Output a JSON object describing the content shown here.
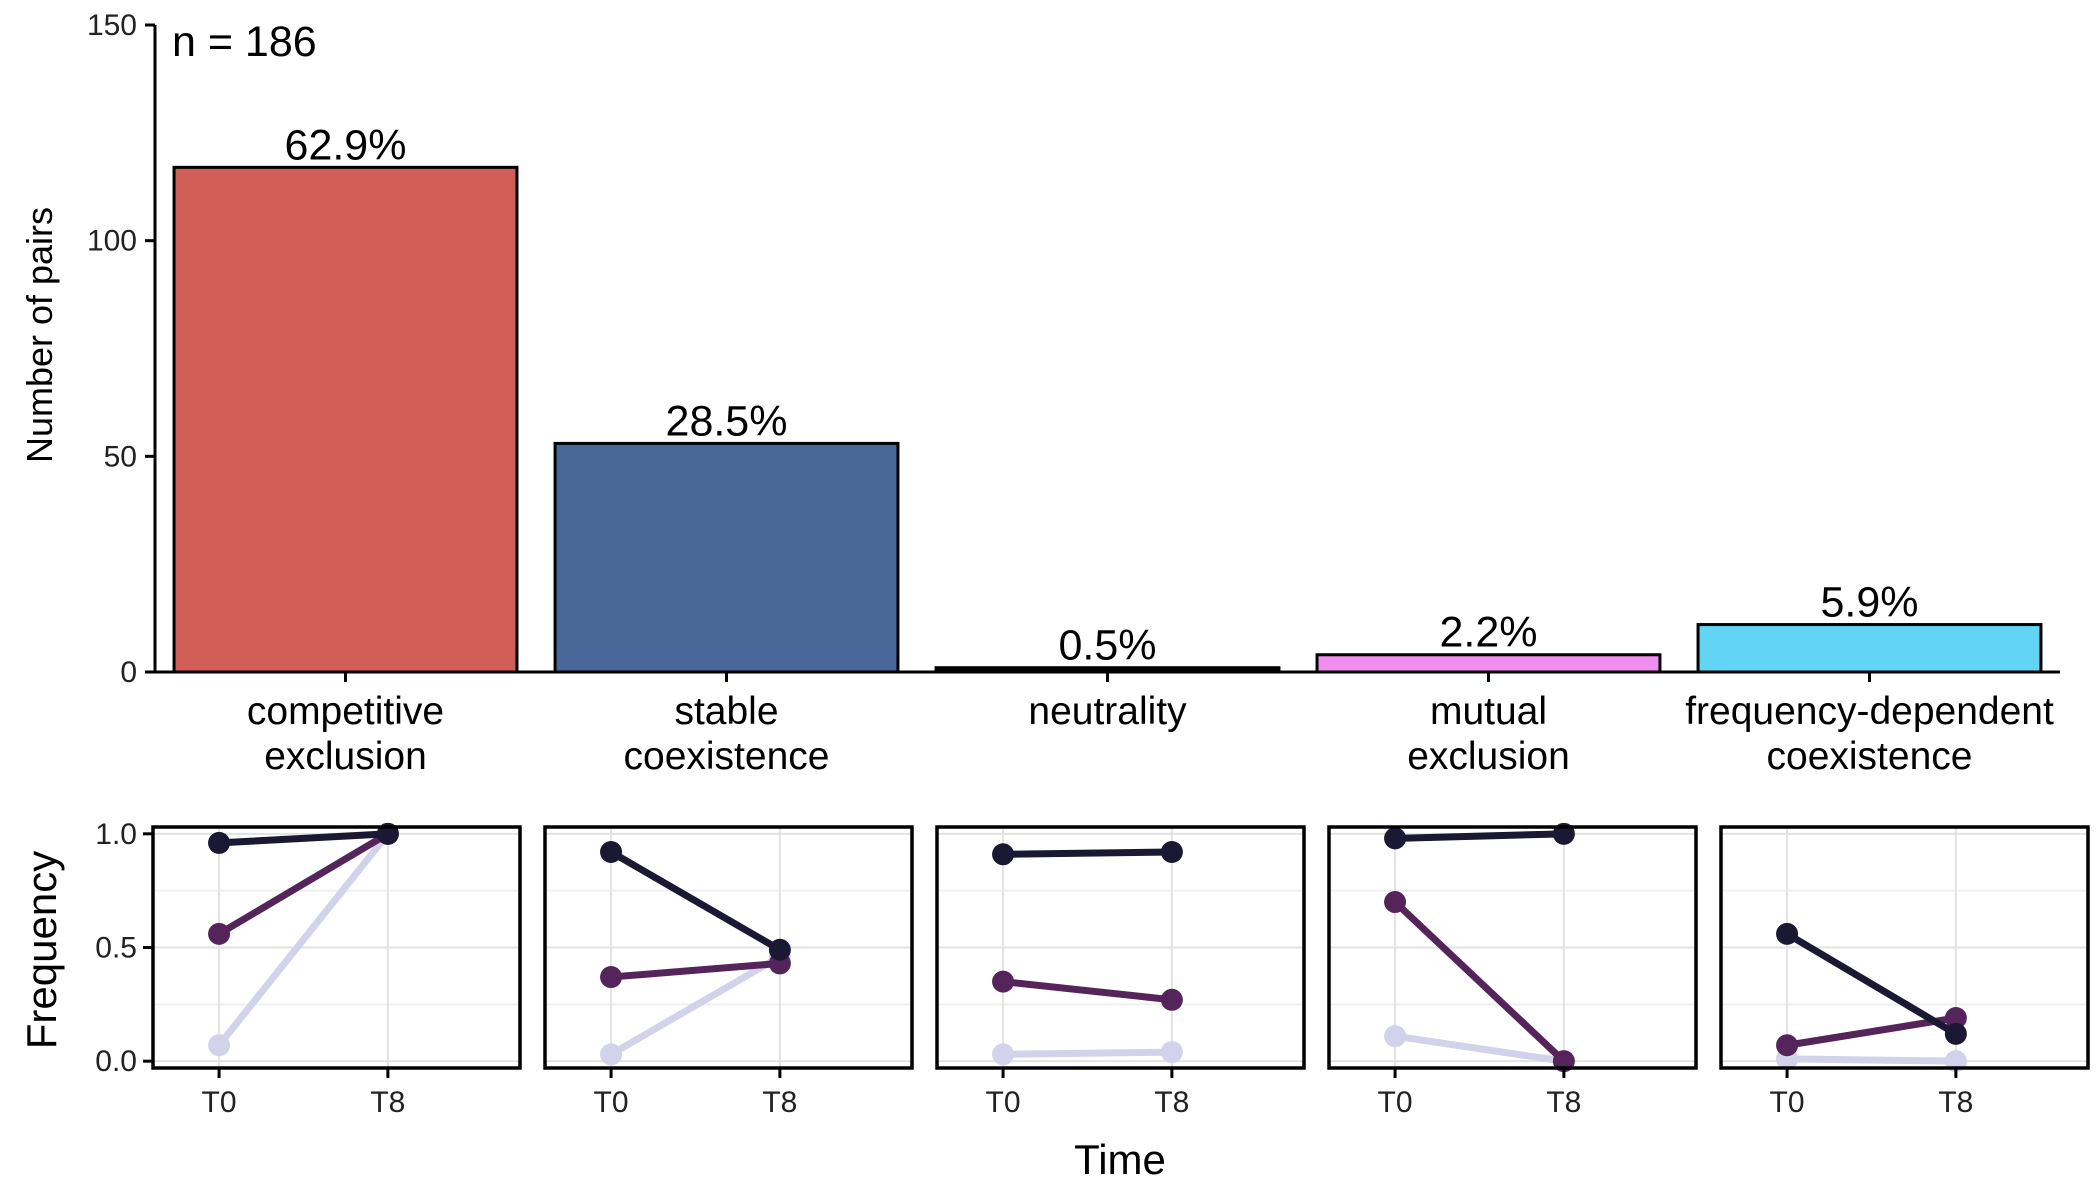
{
  "chart_data": [
    {
      "type": "bar",
      "annotation": "n = 186",
      "ylabel": "Number of pairs",
      "ylim": [
        0,
        150
      ],
      "yticks": [
        0,
        50,
        100,
        150
      ],
      "categories": [
        {
          "line1": "competitive",
          "line2": "exclusion"
        },
        {
          "line1": "stable",
          "line2": "coexistence"
        },
        {
          "line1": "neutrality",
          "line2": ""
        },
        {
          "line1": "mutual",
          "line2": "exclusion"
        },
        {
          "line1": "frequency-dependent",
          "line2": "coexistence"
        }
      ],
      "values": [
        117,
        53,
        1,
        4,
        11
      ],
      "labels": [
        "62.9%",
        "28.5%",
        "0.5%",
        "2.2%",
        "5.9%"
      ],
      "colors": [
        "#d15e57",
        "#466798",
        "#000000",
        "#f08ef0",
        "#62d5f4"
      ]
    },
    {
      "type": "line",
      "facets": 5,
      "xlabel": "Time",
      "ylabel": "Frequency",
      "ylim": [
        0,
        1
      ],
      "yticks": [
        "0.0",
        "0.5",
        "1.0"
      ],
      "x": [
        "T0",
        "T8"
      ],
      "series_colors": [
        "#1a1833",
        "#55245a",
        "#d2d2ea"
      ],
      "panels": [
        {
          "series": [
            {
              "values": [
                0.96,
                1.0
              ]
            },
            {
              "values": [
                0.56,
                1.0
              ]
            },
            {
              "values": [
                0.07,
                1.0
              ]
            }
          ]
        },
        {
          "series": [
            {
              "values": [
                0.92,
                0.49
              ]
            },
            {
              "values": [
                0.37,
                0.43
              ]
            },
            {
              "values": [
                0.03,
                0.46
              ]
            }
          ]
        },
        {
          "series": [
            {
              "values": [
                0.91,
                0.92
              ]
            },
            {
              "values": [
                0.35,
                0.27
              ]
            },
            {
              "values": [
                0.03,
                0.04
              ]
            }
          ]
        },
        {
          "series": [
            {
              "values": [
                0.98,
                1.0
              ]
            },
            {
              "values": [
                0.7,
                0.0
              ]
            },
            {
              "values": [
                0.11,
                0.0
              ]
            }
          ]
        },
        {
          "series": [
            {
              "values": [
                0.56,
                0.12
              ]
            },
            {
              "values": [
                0.07,
                0.19
              ]
            },
            {
              "values": [
                0.01,
                0.0
              ]
            }
          ]
        }
      ]
    }
  ]
}
